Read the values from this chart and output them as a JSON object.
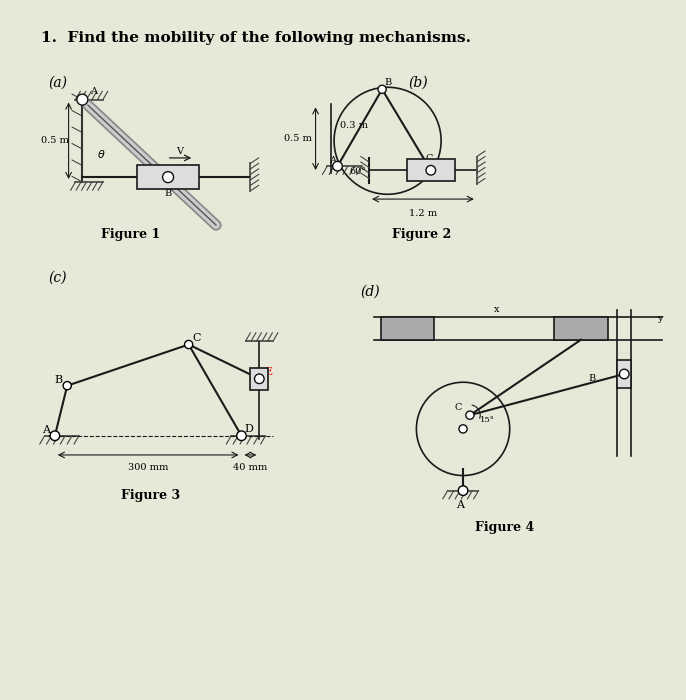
{
  "title": "1.  Find the mobility of the following mechanisms.",
  "title_fontsize": 11,
  "bg_color": "#e8e8d8",
  "line_color": "#1a1a1a",
  "fig1": {
    "label": "(a)",
    "caption": "Figure 1"
  },
  "fig2": {
    "label": "(b)",
    "caption": "Figure 2",
    "dim_03m": "0.3 m",
    "dim_05m": "0.5 m",
    "dim_12m": "1.2 m"
  },
  "fig3": {
    "label": "(c)",
    "caption": "Figure 3",
    "dim_300mm": "300 mm",
    "dim_40mm": "40 mm"
  },
  "fig4": {
    "label": "(d)",
    "caption": "Figure 4"
  },
  "hatch_color": "#555555",
  "joint_color": "#ffffff",
  "joint_edge": "#111111"
}
